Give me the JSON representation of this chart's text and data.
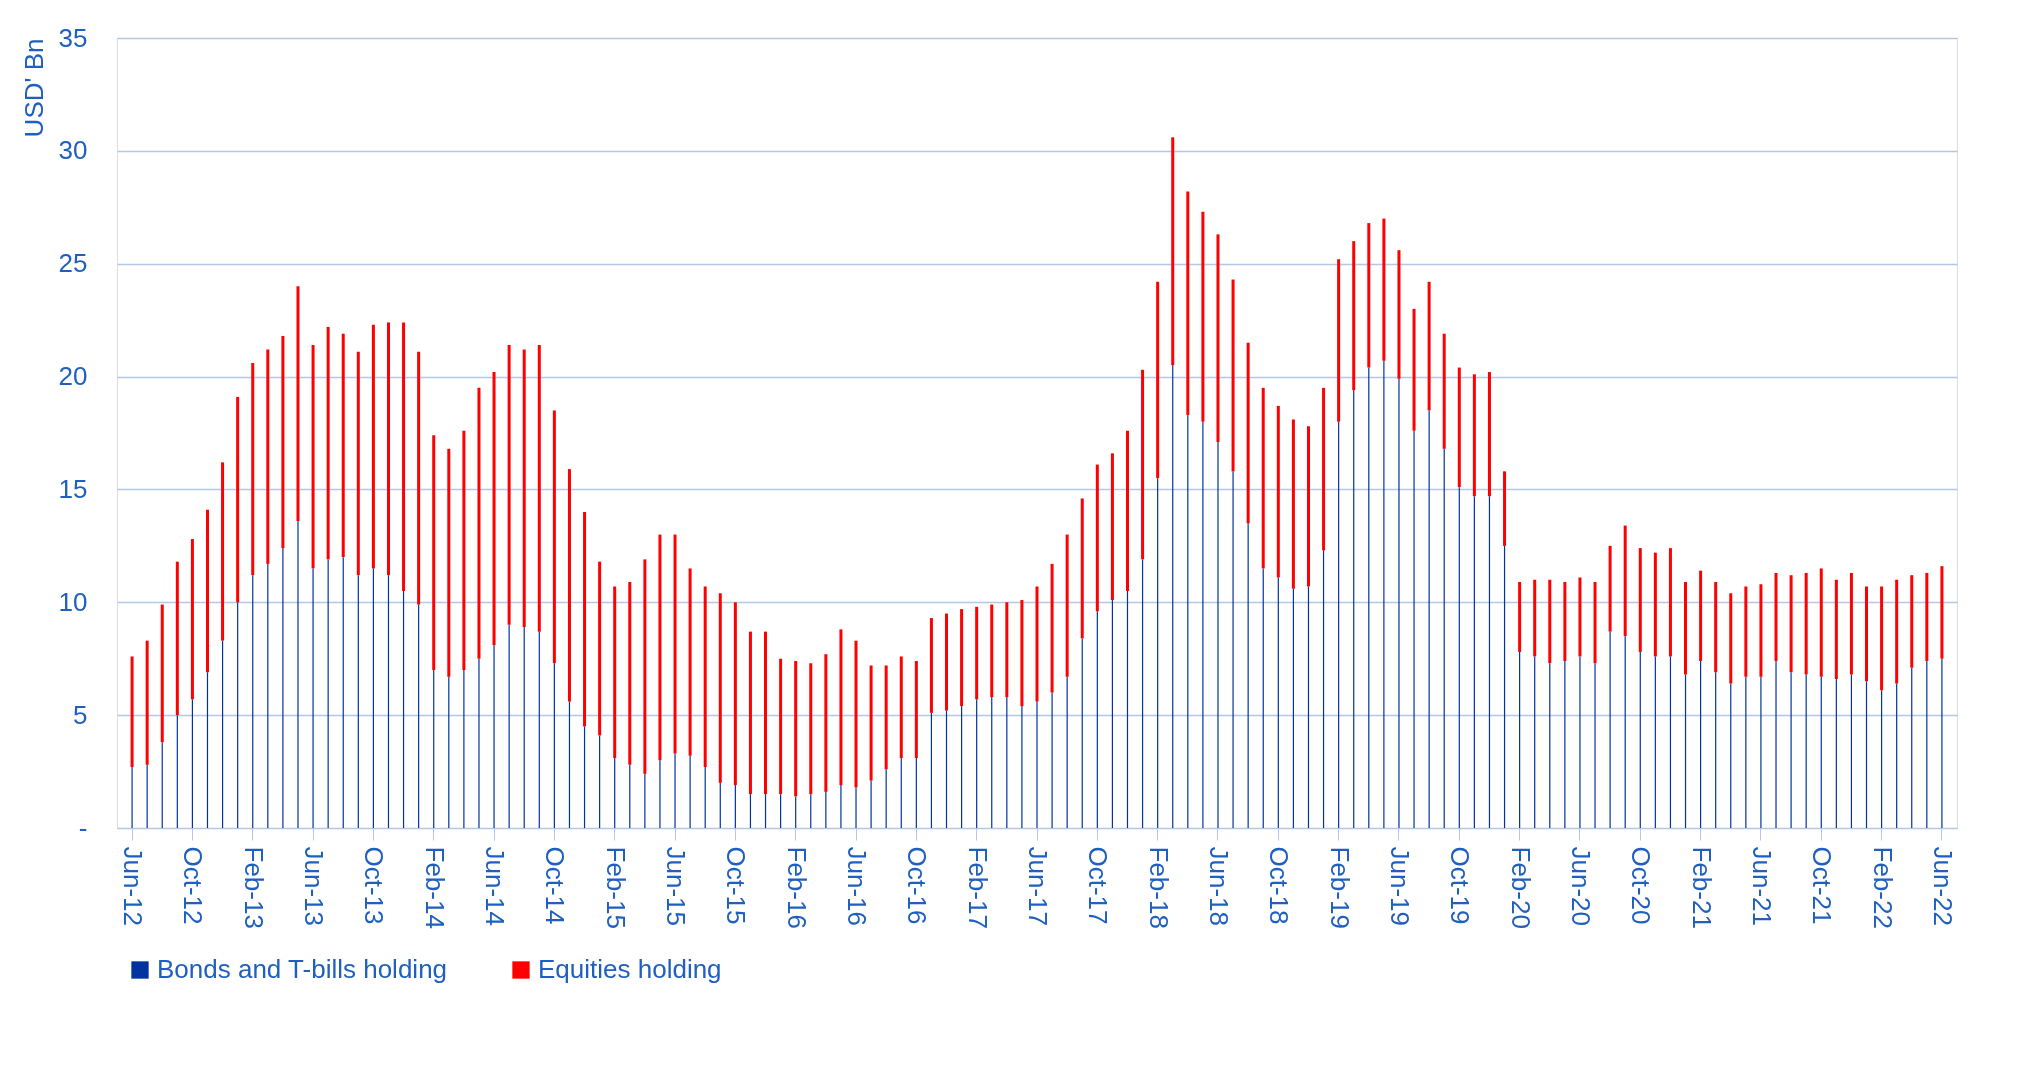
{
  "chart_data": {
    "type": "bar",
    "stacked": true,
    "ylabel": "USD' Bn",
    "categories": [
      "Jun-12",
      null,
      null,
      null,
      "Oct-12",
      null,
      null,
      null,
      "Feb-13",
      null,
      null,
      null,
      "Jun-13",
      null,
      null,
      null,
      "Oct-13",
      null,
      null,
      null,
      "Feb-14",
      null,
      null,
      null,
      "Jun-14",
      null,
      null,
      null,
      "Oct-14",
      null,
      null,
      null,
      "Feb-15",
      null,
      null,
      null,
      "Jun-15",
      null,
      null,
      null,
      "Oct-15",
      null,
      null,
      null,
      "Feb-16",
      null,
      null,
      null,
      "Jun-16",
      null,
      null,
      null,
      "Oct-16",
      null,
      null,
      null,
      "Feb-17",
      null,
      null,
      null,
      "Jun-17",
      null,
      null,
      null,
      "Oct-17",
      null,
      null,
      null,
      "Feb-18",
      null,
      null,
      null,
      "Jun-18",
      null,
      null,
      null,
      "Oct-18",
      null,
      null,
      null,
      "Feb-19",
      null,
      null,
      null,
      "Jun-19",
      null,
      null,
      null,
      "Oct-19",
      null,
      null,
      null,
      "Feb-20",
      null,
      null,
      null,
      "Jun-20",
      null,
      null,
      null,
      "Oct-20",
      null,
      null,
      null,
      "Feb-21",
      null,
      null,
      null,
      "Jun-21",
      null,
      null,
      null,
      "Oct-21",
      null,
      null,
      null,
      "Feb-22",
      null,
      null,
      null,
      "Jun-22"
    ],
    "series": [
      {
        "name": "Bonds and T-bills holding",
        "color": "#0033a0",
        "values": [
          2.7,
          2.8,
          3.8,
          5.0,
          5.7,
          6.9,
          8.3,
          10.0,
          11.2,
          11.7,
          12.4,
          13.6,
          11.5,
          11.9,
          12.0,
          11.2,
          11.5,
          11.2,
          10.5,
          9.9,
          7.0,
          6.7,
          7.0,
          7.5,
          8.1,
          9.0,
          8.9,
          8.7,
          7.3,
          5.6,
          4.5,
          4.1,
          3.1,
          2.8,
          2.4,
          3.0,
          3.3,
          3.2,
          2.7,
          2.0,
          1.9,
          1.5,
          1.5,
          1.5,
          1.4,
          1.5,
          1.6,
          1.9,
          1.8,
          2.1,
          2.6,
          3.1,
          3.1,
          5.1,
          5.2,
          5.4,
          5.7,
          5.8,
          5.8,
          5.4,
          5.6,
          6.0,
          6.7,
          8.4,
          9.6,
          10.1,
          10.5,
          11.9,
          15.5,
          20.5,
          18.3,
          18.0,
          17.1,
          15.8,
          13.5,
          11.5,
          11.1,
          10.6,
          10.7,
          12.3,
          18.0,
          19.4,
          20.4,
          20.7,
          19.9,
          17.6,
          18.5,
          16.8,
          15.1,
          14.7,
          14.7,
          12.5,
          7.8,
          7.6,
          7.3,
          7.4,
          7.6,
          7.3,
          8.7,
          8.5,
          7.8,
          7.6,
          7.6,
          6.8,
          7.4,
          6.9,
          6.4,
          6.7,
          6.7,
          7.4,
          6.9,
          6.8,
          6.7,
          6.6,
          6.8,
          6.5,
          6.1,
          6.4,
          7.1,
          7.4,
          7.5
        ]
      },
      {
        "name": "Equities holding",
        "color": "#ff0000",
        "values": [
          4.9,
          5.5,
          6.1,
          6.8,
          7.1,
          7.2,
          7.9,
          9.1,
          9.4,
          9.5,
          9.4,
          10.4,
          9.9,
          10.3,
          9.9,
          9.9,
          10.8,
          11.2,
          11.9,
          11.2,
          10.4,
          10.1,
          10.6,
          12.0,
          12.1,
          12.4,
          12.3,
          12.7,
          11.2,
          10.3,
          9.5,
          7.7,
          7.6,
          8.1,
          9.5,
          10.0,
          9.7,
          8.3,
          8.0,
          8.4,
          8.1,
          7.2,
          7.2,
          6.0,
          6.0,
          5.8,
          6.1,
          6.9,
          6.5,
          5.1,
          4.6,
          4.5,
          4.3,
          4.2,
          4.3,
          4.3,
          4.1,
          4.1,
          4.2,
          4.7,
          5.1,
          5.7,
          6.3,
          6.2,
          6.5,
          6.5,
          7.1,
          8.4,
          8.7,
          10.1,
          9.9,
          9.3,
          9.2,
          8.5,
          8.0,
          8.0,
          7.6,
          7.5,
          7.1,
          7.2,
          7.2,
          6.6,
          6.4,
          6.3,
          5.7,
          5.4,
          5.7,
          5.1,
          5.3,
          5.4,
          5.5,
          3.3,
          3.1,
          3.4,
          3.7,
          3.5,
          3.5,
          3.6,
          3.8,
          4.9,
          4.6,
          4.6,
          4.8,
          4.1,
          4.0,
          4.0,
          4.0,
          4.0,
          4.1,
          3.9,
          4.3,
          4.5,
          4.8,
          4.4,
          4.5,
          4.2,
          4.6,
          4.6,
          4.1,
          3.9,
          4.1
        ]
      }
    ],
    "ylim": [
      0,
      35
    ],
    "yticks": [
      {
        "value": 0,
        "label": "-"
      },
      5,
      10,
      15,
      20,
      25,
      30,
      35
    ],
    "grid": "y",
    "legend": "bottom"
  }
}
